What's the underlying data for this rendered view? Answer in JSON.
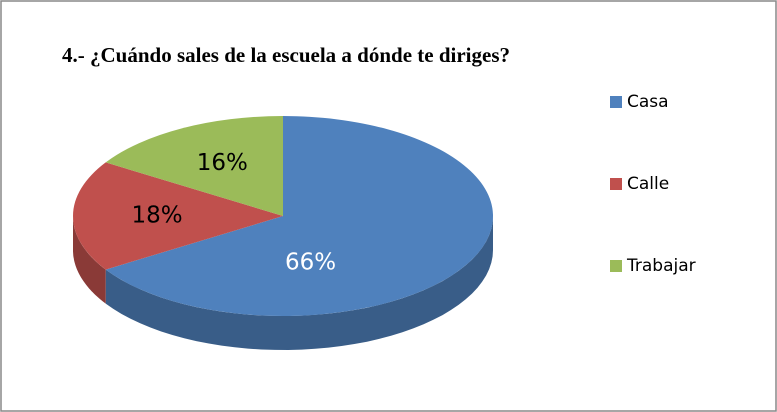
{
  "chart_data": {
    "type": "pie",
    "title": "4.- ¿Cuándo sales de la escuela a dónde te diriges?",
    "categories": [
      "Casa",
      "Calle",
      "Trabajar"
    ],
    "values": [
      66,
      18,
      16
    ],
    "value_labels": [
      "66%",
      "18%",
      "16%"
    ],
    "colors": [
      "#4f81bd",
      "#c0504d",
      "#9bbb59"
    ],
    "legend": "right"
  }
}
